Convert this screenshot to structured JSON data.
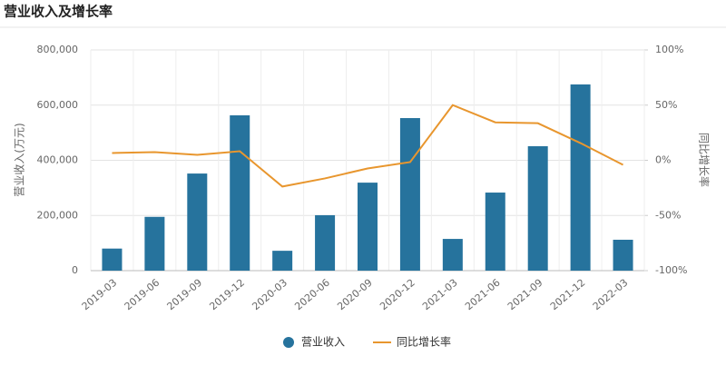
{
  "chart_data": {
    "type": "bar_line",
    "title": "营业收入及增长率",
    "ylabel": "营业收入(万元)",
    "y2label": "同比增长率",
    "categories": [
      "2019-03",
      "2019-06",
      "2019-09",
      "2019-12",
      "2020-03",
      "2020-06",
      "2020-09",
      "2020-12",
      "2021-03",
      "2021-06",
      "2021-09",
      "2021-12",
      "2022-03"
    ],
    "series": [
      {
        "name": "营业收入",
        "type": "bar",
        "color": "#26739d",
        "values": [
          80000,
          195000,
          352000,
          563000,
          72000,
          201000,
          319000,
          553000,
          115000,
          283000,
          451000,
          675000,
          112000
        ]
      },
      {
        "name": "同比增长率",
        "type": "line",
        "axis": "y2",
        "color": "#e8962e",
        "values": [
          6.6,
          7.4,
          4.9,
          8.2,
          -23.8,
          -16.4,
          -7.4,
          -1.6,
          50,
          34.4,
          33.6,
          15.6,
          -4.1
        ]
      }
    ],
    "ylim": [
      0,
      800000
    ],
    "yticks": [
      0,
      {
        "value": 200000,
        "label": "200,000"
      },
      {
        "value": 400000,
        "label": "400,000"
      },
      {
        "value": 600000,
        "label": "600,000"
      },
      {
        "value": 800000,
        "label": "800,000"
      }
    ],
    "y2lim": [
      -100,
      100
    ],
    "y2ticks": [
      {
        "value": -100,
        "label": "-100%"
      },
      {
        "value": -50,
        "label": "-50%"
      },
      {
        "value": 0,
        "label": "0%"
      },
      {
        "value": 50,
        "label": "50%"
      },
      {
        "value": 100,
        "label": "100%"
      }
    ],
    "grid": true,
    "legend": "bottom"
  }
}
